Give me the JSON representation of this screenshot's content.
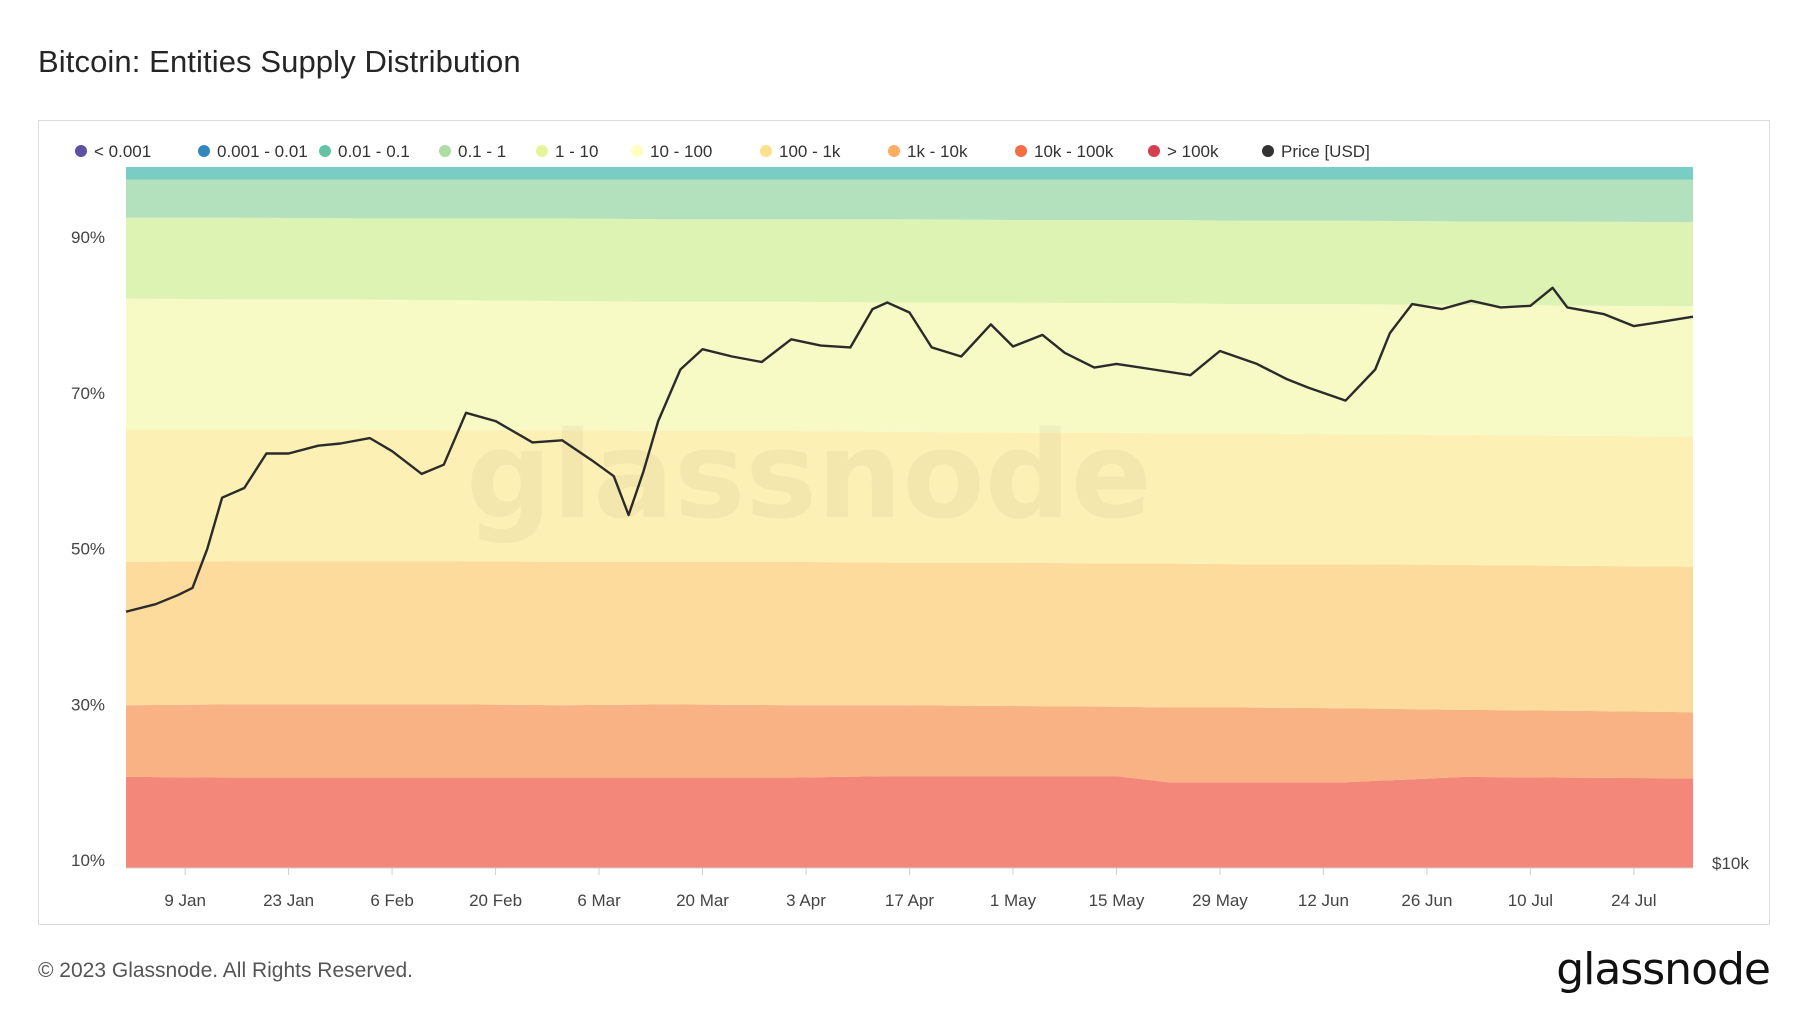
{
  "title": "Bitcoin: Entities Supply Distribution",
  "footer": {
    "copyright": "© 2023 Glassnode. All Rights Reserved.",
    "logo": "glassnode"
  },
  "watermark": "glassnode",
  "chart_data": {
    "type": "area",
    "title": "Bitcoin: Entities Supply Distribution",
    "stacked": true,
    "x_tick_labels": [
      "9 Jan",
      "23 Jan",
      "6 Feb",
      "20 Feb",
      "6 Mar",
      "20 Mar",
      "3 Apr",
      "17 Apr",
      "1 May",
      "15 May",
      "29 May",
      "12 Jun",
      "26 Jun",
      "10 Jul",
      "24 Jul"
    ],
    "x_range": [
      "2023-01-01",
      "2023-08-01"
    ],
    "y_left_tick_labels": [
      "10%",
      "30%",
      "50%",
      "70%",
      "90%"
    ],
    "y_left_ticks": [
      10,
      30,
      50,
      70,
      90
    ],
    "y_left_range": [
      9,
      99
    ],
    "y_right_tick_labels": [
      "$10k"
    ],
    "y_right_scale": "log",
    "y_right_range_usd": [
      10000,
      40000
    ],
    "grid": false,
    "legend_position": "top",
    "legend": [
      {
        "label": "< 0.001",
        "color": "#5e4fa2"
      },
      {
        "label": "0.001 - 0.01",
        "color": "#3288bd"
      },
      {
        "label": "0.01 - 0.1",
        "color": "#66c2a5"
      },
      {
        "label": "0.1 - 1",
        "color": "#abdda4"
      },
      {
        "label": "1 - 10",
        "color": "#e6f598"
      },
      {
        "label": "10 - 100",
        "color": "#ffffbf"
      },
      {
        "label": "100 - 1k",
        "color": "#fee08b"
      },
      {
        "label": "1k - 10k",
        "color": "#fdae61"
      },
      {
        "label": "10k - 100k",
        "color": "#f46d43"
      },
      {
        "label": "> 100k",
        "color": "#d53e4f"
      },
      {
        "label": "Price [USD]",
        "color": "#333333"
      }
    ],
    "band_fill_colors": [
      "#f3887a",
      "#f8b283",
      "#fddb9d",
      "#fcf0b5",
      "#f7fac5",
      "#dcf3b3",
      "#b3e0bd",
      "#79cdc4",
      "#6fa8d6"
    ],
    "band_bottom_boundaries_pct": {
      "dates": [
        "2023-01-01",
        "2023-01-15",
        "2023-02-01",
        "2023-02-15",
        "2023-03-01",
        "2023-03-15",
        "2023-04-01",
        "2023-04-15",
        "2023-05-01",
        "2023-05-15",
        "2023-05-22",
        "2023-06-01",
        "2023-06-15",
        "2023-07-01",
        "2023-07-15",
        "2023-08-01"
      ],
      "series": [
        {
          "name": "> 100k",
          "top": [
            20.7,
            20.6,
            20.6,
            20.6,
            20.6,
            20.6,
            20.6,
            20.8,
            20.8,
            20.8,
            20.0,
            20.0,
            20.0,
            20.7,
            20.6,
            20.5
          ]
        },
        {
          "name": "10k - 100k",
          "top": [
            29.9,
            30.0,
            30.0,
            30.0,
            29.9,
            30.0,
            29.9,
            29.9,
            29.8,
            29.7,
            29.6,
            29.6,
            29.5,
            29.3,
            29.2,
            29.0
          ]
        },
        {
          "name": "1k - 10k",
          "top": [
            48.3,
            48.4,
            48.4,
            48.4,
            48.3,
            48.3,
            48.3,
            48.2,
            48.2,
            48.1,
            48.1,
            48.0,
            48.0,
            47.9,
            47.8,
            47.7
          ]
        },
        {
          "name": "100 - 1k",
          "top": [
            65.3,
            65.3,
            65.3,
            65.2,
            65.2,
            65.1,
            65.1,
            65.0,
            64.9,
            64.9,
            64.8,
            64.8,
            64.7,
            64.6,
            64.5,
            64.4
          ]
        },
        {
          "name": "10 - 100",
          "top": [
            82.1,
            82.0,
            82.0,
            81.9,
            81.8,
            81.7,
            81.7,
            81.6,
            81.6,
            81.5,
            81.5,
            81.4,
            81.4,
            81.3,
            81.2,
            81.1
          ]
        },
        {
          "name": "1 - 10",
          "top": [
            92.5,
            92.5,
            92.4,
            92.4,
            92.4,
            92.3,
            92.3,
            92.3,
            92.2,
            92.2,
            92.2,
            92.1,
            92.1,
            92.0,
            92.0,
            91.9
          ]
        },
        {
          "name": "0.1 - 1",
          "top": [
            97.4,
            97.4,
            97.4,
            97.4,
            97.4,
            97.4,
            97.4,
            97.4,
            97.4,
            97.4,
            97.4,
            97.4,
            97.4,
            97.4,
            97.4,
            97.4
          ]
        },
        {
          "name": "0.01 - 0.1",
          "top": [
            99.0,
            99.0,
            99.0,
            99.0,
            99.0,
            99.0,
            99.0,
            99.0,
            99.0,
            99.0,
            99.0,
            99.0,
            99.0,
            99.0,
            99.0,
            99.0
          ]
        }
      ]
    },
    "price_usd": {
      "dates": [
        "2023-01-01",
        "2023-01-05",
        "2023-01-08",
        "2023-01-10",
        "2023-01-12",
        "2023-01-14",
        "2023-01-17",
        "2023-01-20",
        "2023-01-23",
        "2023-01-27",
        "2023-01-30",
        "2023-02-03",
        "2023-02-06",
        "2023-02-10",
        "2023-02-13",
        "2023-02-16",
        "2023-02-20",
        "2023-02-25",
        "2023-03-01",
        "2023-03-05",
        "2023-03-08",
        "2023-03-10",
        "2023-03-12",
        "2023-03-14",
        "2023-03-17",
        "2023-03-20",
        "2023-03-24",
        "2023-03-28",
        "2023-04-01",
        "2023-04-05",
        "2023-04-09",
        "2023-04-12",
        "2023-04-14",
        "2023-04-17",
        "2023-04-20",
        "2023-04-24",
        "2023-04-28",
        "2023-05-01",
        "2023-05-05",
        "2023-05-08",
        "2023-05-12",
        "2023-05-15",
        "2023-05-20",
        "2023-05-25",
        "2023-05-29",
        "2023-06-03",
        "2023-06-07",
        "2023-06-10",
        "2023-06-15",
        "2023-06-19",
        "2023-06-21",
        "2023-06-24",
        "2023-06-28",
        "2023-07-02",
        "2023-07-06",
        "2023-07-10",
        "2023-07-13",
        "2023-07-15",
        "2023-07-20",
        "2023-07-24",
        "2023-07-27",
        "2023-08-01"
      ],
      "values": [
        16600,
        16850,
        17150,
        17400,
        18800,
        20800,
        21200,
        22700,
        22700,
        23050,
        23150,
        23400,
        22800,
        21800,
        22200,
        24600,
        24200,
        23200,
        23300,
        22400,
        21700,
        20100,
        21900,
        24200,
        26800,
        27900,
        27500,
        27200,
        28450,
        28100,
        28000,
        30200,
        30600,
        30000,
        28000,
        27500,
        29300,
        28050,
        28700,
        27700,
        26900,
        27100,
        26800,
        26500,
        27800,
        27100,
        26300,
        25850,
        25200,
        26800,
        28800,
        30500,
        30200,
        30700,
        30300,
        30400,
        31500,
        30300,
        29900,
        29200,
        29400,
        29750
      ]
    }
  }
}
